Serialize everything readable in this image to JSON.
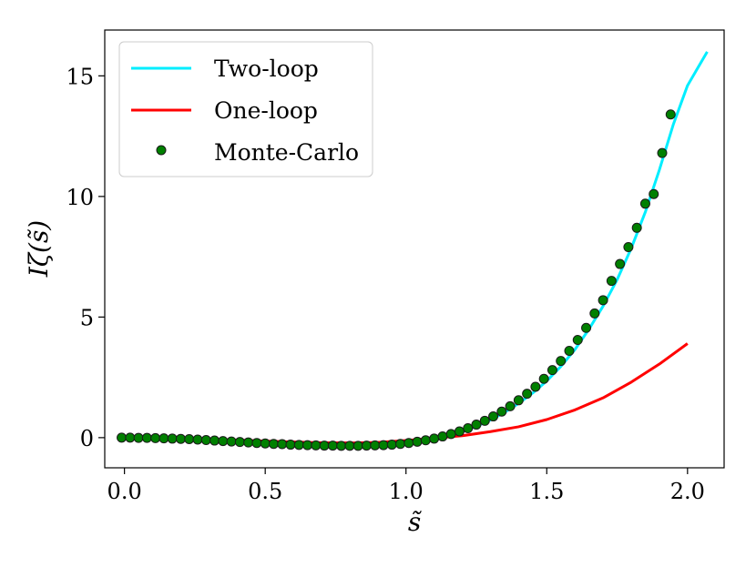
{
  "chart_data": {
    "type": "line",
    "title": "",
    "xlabel": "s̃",
    "ylabel": "Iζ(s̃)",
    "xlim": [
      -0.07,
      2.13
    ],
    "ylim": [
      -1.25,
      16.9
    ],
    "xticks": [
      0.0,
      0.5,
      1.0,
      1.5,
      2.0
    ],
    "xtick_labels": [
      "0.0",
      "0.5",
      "1.0",
      "1.5",
      "2.0"
    ],
    "yticks": [
      0,
      5,
      10,
      15
    ],
    "ytick_labels": [
      "0",
      "5",
      "10",
      "15"
    ],
    "grid": false,
    "legend_position": "top-left",
    "series": [
      {
        "name": "Two-loop",
        "kind": "line",
        "color": "#00eeff",
        "x": [
          0.0,
          0.1,
          0.2,
          0.3,
          0.4,
          0.5,
          0.6,
          0.7,
          0.8,
          0.9,
          1.0,
          1.05,
          1.1,
          1.15,
          1.2,
          1.25,
          1.3,
          1.35,
          1.4,
          1.45,
          1.5,
          1.55,
          1.6,
          1.65,
          1.7,
          1.75,
          1.8,
          1.85,
          1.9,
          1.95,
          2.0,
          2.07
        ],
        "values": [
          0.0,
          -0.01,
          -0.03,
          -0.06,
          -0.1,
          -0.15,
          -0.2,
          -0.24,
          -0.26,
          -0.25,
          -0.2,
          -0.14,
          -0.05,
          0.08,
          0.25,
          0.47,
          0.73,
          1.05,
          1.42,
          1.85,
          2.35,
          2.95,
          3.65,
          4.5,
          5.45,
          6.55,
          7.85,
          9.35,
          11.1,
          13.0,
          14.6,
          16.0
        ]
      },
      {
        "name": "One-loop",
        "kind": "line",
        "color": "#ff0000",
        "x": [
          0.0,
          0.1,
          0.2,
          0.3,
          0.4,
          0.5,
          0.6,
          0.7,
          0.8,
          0.9,
          1.0,
          1.1,
          1.2,
          1.3,
          1.4,
          1.5,
          1.6,
          1.7,
          1.8,
          1.9,
          2.0
        ],
        "values": [
          0.0,
          -0.01,
          -0.03,
          -0.06,
          -0.1,
          -0.14,
          -0.18,
          -0.21,
          -0.22,
          -0.2,
          -0.12,
          -0.02,
          0.08,
          0.25,
          0.45,
          0.75,
          1.15,
          1.65,
          2.3,
          3.05,
          3.9
        ]
      },
      {
        "name": "Monte-Carlo",
        "kind": "scatter",
        "color": "#008000",
        "edge_color": "#1a1a1a",
        "x": [
          -0.01,
          0.02,
          0.05,
          0.08,
          0.11,
          0.14,
          0.17,
          0.2,
          0.23,
          0.26,
          0.29,
          0.32,
          0.35,
          0.38,
          0.41,
          0.44,
          0.47,
          0.5,
          0.53,
          0.56,
          0.59,
          0.62,
          0.65,
          0.68,
          0.71,
          0.74,
          0.77,
          0.8,
          0.83,
          0.86,
          0.89,
          0.92,
          0.95,
          0.98,
          1.01,
          1.04,
          1.07,
          1.1,
          1.13,
          1.16,
          1.19,
          1.22,
          1.25,
          1.28,
          1.31,
          1.34,
          1.37,
          1.4,
          1.43,
          1.46,
          1.49,
          1.52,
          1.55,
          1.58,
          1.61,
          1.64,
          1.67,
          1.7,
          1.73,
          1.76,
          1.79,
          1.82,
          1.85,
          1.88,
          1.91,
          1.94
        ],
        "values": [
          0.0,
          0.0,
          -0.01,
          -0.01,
          -0.02,
          -0.03,
          -0.04,
          -0.05,
          -0.06,
          -0.08,
          -0.1,
          -0.12,
          -0.14,
          -0.16,
          -0.18,
          -0.2,
          -0.22,
          -0.24,
          -0.26,
          -0.27,
          -0.29,
          -0.3,
          -0.31,
          -0.32,
          -0.33,
          -0.33,
          -0.34,
          -0.34,
          -0.34,
          -0.33,
          -0.32,
          -0.31,
          -0.29,
          -0.26,
          -0.22,
          -0.17,
          -0.11,
          -0.04,
          0.05,
          0.15,
          0.26,
          0.39,
          0.54,
          0.7,
          0.88,
          1.08,
          1.3,
          1.55,
          1.82,
          2.11,
          2.44,
          2.8,
          3.18,
          3.6,
          4.05,
          4.55,
          5.15,
          5.7,
          6.5,
          7.2,
          7.9,
          8.7,
          9.7,
          10.1,
          11.8,
          13.4
        ]
      }
    ]
  }
}
